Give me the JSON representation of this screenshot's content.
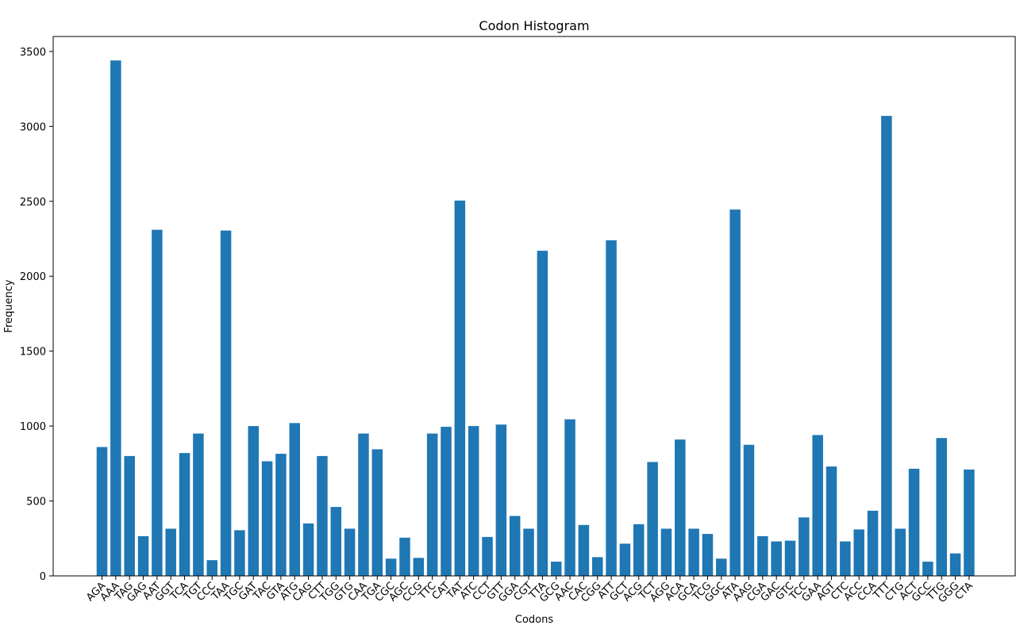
{
  "chart_data": {
    "type": "bar",
    "title": "Codon Histogram",
    "xlabel": "Codons",
    "ylabel": "Frequency",
    "ylim": [
      0,
      3600
    ],
    "yticks": [
      0,
      500,
      1000,
      1500,
      2000,
      2500,
      3000,
      3500
    ],
    "grid": false,
    "bar_color": "#1f77b4",
    "categories": [
      "AGA",
      "AAA",
      "TAG",
      "GAG",
      "AAT",
      "GGT",
      "TCA",
      "TGT",
      "CCC",
      "TAA",
      "TGC",
      "GAT",
      "TAC",
      "GTA",
      "ATG",
      "CAG",
      "CTT",
      "TGG",
      "GTG",
      "CAA",
      "TGA",
      "CGC",
      "AGC",
      "CCG",
      "TTC",
      "CAT",
      "TAT",
      "ATC",
      "CCT",
      "GTT",
      "GGA",
      "CGT",
      "TTA",
      "GCG",
      "AAC",
      "CAC",
      "CGG",
      "ATT",
      "GCT",
      "ACG",
      "TCT",
      "AGG",
      "ACA",
      "GCA",
      "TCG",
      "GGC",
      "ATA",
      "AAG",
      "CGA",
      "GAC",
      "GTC",
      "TCC",
      "GAA",
      "AGT",
      "CTC",
      "ACC",
      "CCA",
      "TTT",
      "CTG",
      "ACT",
      "GCC",
      "TTG",
      "GGG",
      "CTA"
    ],
    "values": [
      860,
      3440,
      800,
      265,
      2310,
      315,
      820,
      950,
      105,
      2305,
      305,
      1000,
      765,
      815,
      1020,
      350,
      800,
      460,
      315,
      950,
      845,
      115,
      255,
      120,
      950,
      995,
      2505,
      1000,
      260,
      1010,
      400,
      315,
      2170,
      95,
      1045,
      340,
      125,
      2240,
      215,
      345,
      760,
      315,
      910,
      315,
      280,
      115,
      2445,
      875,
      265,
      230,
      235,
      390,
      940,
      730,
      230,
      310,
      435,
      3070,
      315,
      715,
      95,
      920,
      150,
      710
    ]
  }
}
